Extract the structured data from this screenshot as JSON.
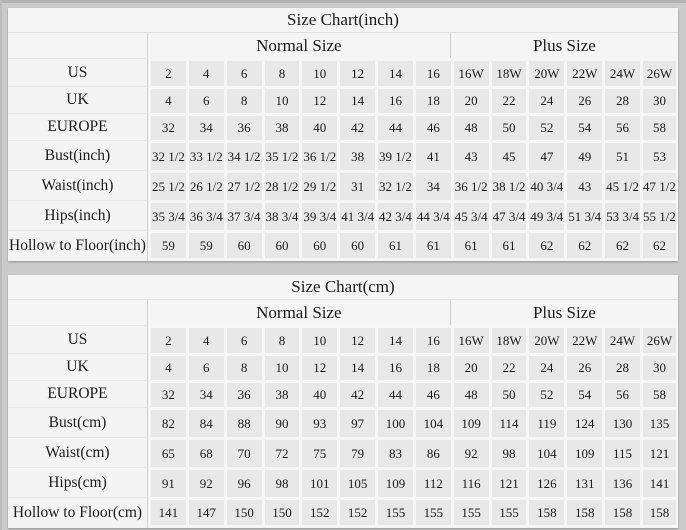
{
  "colors": {
    "page_background": "#cbcbcb",
    "table_background": "#f3f3f3",
    "cell_background": "#e8e8e8",
    "divider": "#d0d0d0",
    "text": "#1b1b1b"
  },
  "chart_data": [
    {
      "type": "table",
      "title": "Size Chart(inch)",
      "column_groups": [
        {
          "label": "Normal Size",
          "span": 8
        },
        {
          "label": "Plus Size",
          "span": 6
        }
      ],
      "rows": [
        {
          "label": "US",
          "values": [
            "2",
            "4",
            "6",
            "8",
            "10",
            "12",
            "14",
            "16",
            "16W",
            "18W",
            "20W",
            "22W",
            "24W",
            "26W"
          ]
        },
        {
          "label": "UK",
          "values": [
            "4",
            "6",
            "8",
            "10",
            "12",
            "14",
            "16",
            "18",
            "20",
            "22",
            "24",
            "26",
            "28",
            "30"
          ]
        },
        {
          "label": "EUROPE",
          "values": [
            "32",
            "34",
            "36",
            "38",
            "40",
            "42",
            "44",
            "46",
            "48",
            "50",
            "52",
            "54",
            "56",
            "58"
          ]
        },
        {
          "label": "Bust(inch)",
          "values": [
            "32 1/2",
            "33 1/2",
            "34 1/2",
            "35 1/2",
            "36 1/2",
            "38",
            "39 1/2",
            "41",
            "43",
            "45",
            "47",
            "49",
            "51",
            "53"
          ]
        },
        {
          "label": "Waist(inch)",
          "values": [
            "25 1/2",
            "26 1/2",
            "27 1/2",
            "28 1/2",
            "29 1/2",
            "31",
            "32 1/2",
            "34",
            "36 1/2",
            "38 1/2",
            "40 3/4",
            "43",
            "45 1/2",
            "47 1/2"
          ]
        },
        {
          "label": "Hips(inch)",
          "values": [
            "35 3/4",
            "36 3/4",
            "37 3/4",
            "38 3/4",
            "39 3/4",
            "41 3/4",
            "42 3/4",
            "44 3/4",
            "45 3/4",
            "47 3/4",
            "49 3/4",
            "51 3/4",
            "53 3/4",
            "55 1/2"
          ]
        },
        {
          "label": "Hollow to Floor(inch)",
          "values": [
            "59",
            "59",
            "60",
            "60",
            "60",
            "60",
            "61",
            "61",
            "61",
            "61",
            "62",
            "62",
            "62",
            "62"
          ]
        }
      ]
    },
    {
      "type": "table",
      "title": "Size Chart(cm)",
      "column_groups": [
        {
          "label": "Normal Size",
          "span": 8
        },
        {
          "label": "Plus Size",
          "span": 6
        }
      ],
      "rows": [
        {
          "label": "US",
          "values": [
            "2",
            "4",
            "6",
            "8",
            "10",
            "12",
            "14",
            "16",
            "16W",
            "18W",
            "20W",
            "22W",
            "24W",
            "26W"
          ]
        },
        {
          "label": "UK",
          "values": [
            "4",
            "6",
            "8",
            "10",
            "12",
            "14",
            "16",
            "18",
            "20",
            "22",
            "24",
            "26",
            "28",
            "30"
          ]
        },
        {
          "label": "EUROPE",
          "values": [
            "32",
            "34",
            "36",
            "38",
            "40",
            "42",
            "44",
            "46",
            "48",
            "50",
            "52",
            "54",
            "56",
            "58"
          ]
        },
        {
          "label": "Bust(cm)",
          "values": [
            "82",
            "84",
            "88",
            "90",
            "93",
            "97",
            "100",
            "104",
            "109",
            "114",
            "119",
            "124",
            "130",
            "135"
          ]
        },
        {
          "label": "Waist(cm)",
          "values": [
            "65",
            "68",
            "70",
            "72",
            "75",
            "79",
            "83",
            "86",
            "92",
            "98",
            "104",
            "109",
            "115",
            "121"
          ]
        },
        {
          "label": "Hips(cm)",
          "values": [
            "91",
            "92",
            "96",
            "98",
            "101",
            "105",
            "109",
            "112",
            "116",
            "121",
            "126",
            "131",
            "136",
            "141"
          ]
        },
        {
          "label": "Hollow to Floor(cm)",
          "values": [
            "141",
            "147",
            "150",
            "150",
            "152",
            "152",
            "155",
            "155",
            "155",
            "155",
            "158",
            "158",
            "158",
            "158"
          ]
        }
      ]
    }
  ]
}
